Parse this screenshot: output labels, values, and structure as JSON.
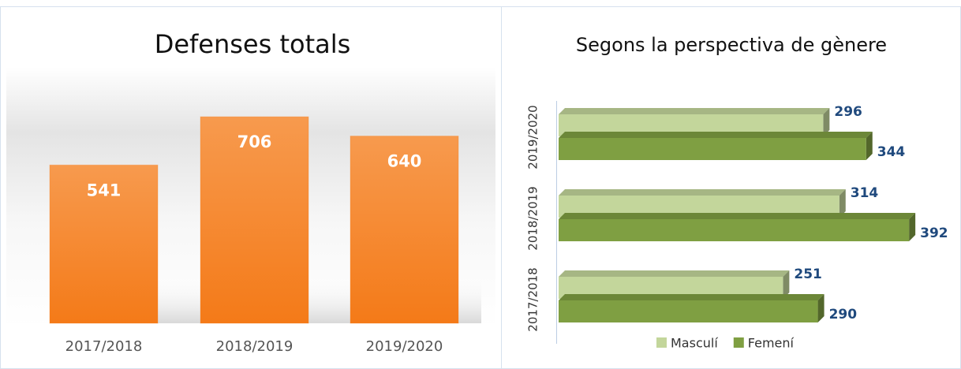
{
  "chart_data": [
    {
      "type": "bar",
      "title": "Defenses totals",
      "categories": [
        "2017/2018",
        "2018/2019",
        "2019/2020"
      ],
      "values": [
        541,
        706,
        640
      ],
      "color": "#f47d1f"
    },
    {
      "type": "hbar",
      "title": "Segons la perspectiva de gènere",
      "categories": [
        "2017/2018",
        "2018/2019",
        "2019/2020"
      ],
      "series": [
        {
          "name": "Masculí",
          "color": "#c3d69b",
          "values": [
            251,
            314,
            296
          ]
        },
        {
          "name": "Femení",
          "color": "#7f9f42",
          "values": [
            290,
            392,
            344
          ]
        }
      ],
      "legend": "bottom"
    }
  ]
}
